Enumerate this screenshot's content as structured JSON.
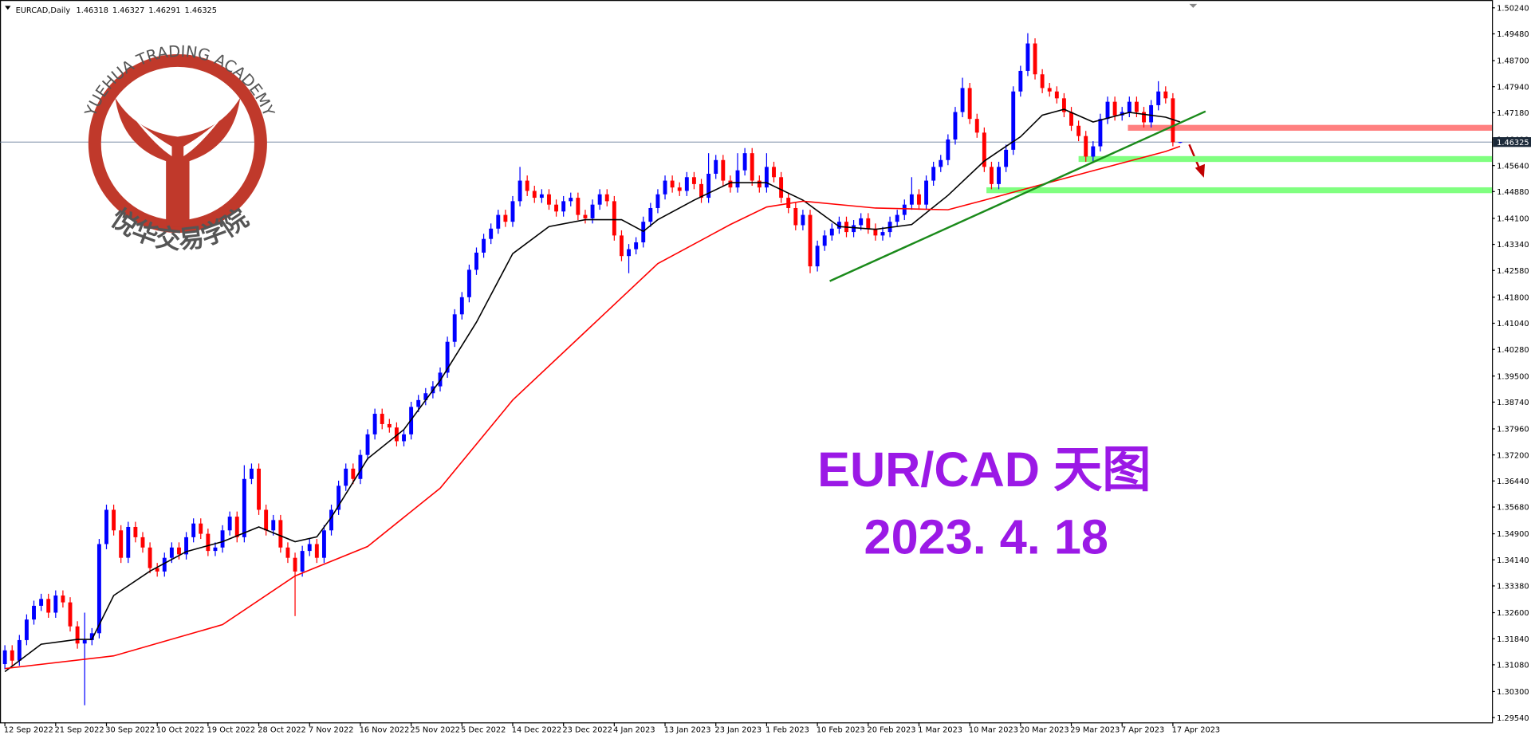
{
  "logo": {
    "text": "YUEHUA TRADING ACADEMY",
    "chinese": "悦华交易学院"
  },
  "chart_data": {
    "type": "candlestick",
    "symbol": "EURCAD,Daily",
    "annotations": [
      "EUR/CAD 天图",
      "2023. 4. 18"
    ],
    "up_color": "#0000ff",
    "down_color": "#ff0000",
    "ylim": [
      1.294,
      1.5041
    ],
    "yticks": [
      {
        "value": 1.5024,
        "label": "1.50240"
      },
      {
        "value": 1.4948,
        "label": "1.49480"
      },
      {
        "value": 1.487,
        "label": "1.48700"
      },
      {
        "value": 1.4794,
        "label": "1.47940"
      },
      {
        "value": 1.4718,
        "label": "1.47180"
      },
      {
        "value": 1.464,
        "label": "1.46400"
      },
      {
        "value": 1.4564,
        "label": "1.45640"
      },
      {
        "value": 1.4488,
        "label": "1.44880"
      },
      {
        "value": 1.441,
        "label": "1.44100"
      },
      {
        "value": 1.4334,
        "label": "1.43340"
      },
      {
        "value": 1.4258,
        "label": "1.42580"
      },
      {
        "value": 1.418,
        "label": "1.41800"
      },
      {
        "value": 1.4104,
        "label": "1.41040"
      },
      {
        "value": 1.4028,
        "label": "1.40280"
      },
      {
        "value": 1.395,
        "label": "1.39500"
      },
      {
        "value": 1.3874,
        "label": "1.38740"
      },
      {
        "value": 1.3796,
        "label": "1.37960"
      },
      {
        "value": 1.372,
        "label": "1.37200"
      },
      {
        "value": 1.3644,
        "label": "1.36440"
      },
      {
        "value": 1.3568,
        "label": "1.35680"
      },
      {
        "value": 1.349,
        "label": "1.34900"
      },
      {
        "value": 1.3414,
        "label": "1.34140"
      },
      {
        "value": 1.3338,
        "label": "1.33380"
      },
      {
        "value": 1.326,
        "label": "1.32600"
      },
      {
        "value": 1.3184,
        "label": "1.31840"
      },
      {
        "value": 1.3108,
        "label": "1.31080"
      },
      {
        "value": 1.303,
        "label": "1.30300"
      },
      {
        "value": 1.2954,
        "label": "1.29540"
      }
    ],
    "xticks": [
      {
        "value": 0,
        "label": "12 Sep 2022"
      },
      {
        "value": 7,
        "label": "21 Sep 2022"
      },
      {
        "value": 14,
        "label": "30 Sep 2022"
      },
      {
        "value": 21,
        "label": "10 Oct 2022"
      },
      {
        "value": 28,
        "label": "19 Oct 2022"
      },
      {
        "value": 35,
        "label": "28 Oct 2022"
      },
      {
        "value": 42,
        "label": "7 Nov 2022"
      },
      {
        "value": 49,
        "label": "16 Nov 2022"
      },
      {
        "value": 56,
        "label": "25 Nov 2022"
      },
      {
        "value": 63,
        "label": "5 Dec 2022"
      },
      {
        "value": 70,
        "label": "14 Dec 2022"
      },
      {
        "value": 77,
        "label": "23 Dec 2022"
      },
      {
        "value": 84,
        "label": "4 Jan 2023"
      },
      {
        "value": 91,
        "label": "13 Jan 2023"
      },
      {
        "value": 98,
        "label": "23 Jan 2023"
      },
      {
        "value": 105,
        "label": "1 Feb 2023"
      },
      {
        "value": 112,
        "label": "10 Feb 2023"
      },
      {
        "value": 119,
        "label": "20 Feb 2023"
      },
      {
        "value": 126,
        "label": "1 Mar 2023"
      },
      {
        "value": 133,
        "label": "10 Mar 2023"
      },
      {
        "value": 140,
        "label": "20 Mar 2023"
      },
      {
        "value": 147,
        "label": "29 Mar 2023"
      },
      {
        "value": 154,
        "label": "7 Apr 2023"
      },
      {
        "value": 161,
        "label": "17 Apr 2023"
      }
    ],
    "ohlc": [
      [
        1.311,
        1.3165,
        1.3095,
        1.315
      ],
      [
        1.315,
        1.3165,
        1.3105,
        1.312
      ],
      [
        1.312,
        1.3195,
        1.3105,
        1.318
      ],
      [
        1.318,
        1.3255,
        1.3165,
        1.324
      ],
      [
        1.324,
        1.3295,
        1.3225,
        1.328
      ],
      [
        1.328,
        1.3315,
        1.3265,
        1.33
      ],
      [
        1.33,
        1.3315,
        1.3245,
        1.326
      ],
      [
        1.326,
        1.3325,
        1.3245,
        1.331
      ],
      [
        1.331,
        1.3325,
        1.3275,
        1.329
      ],
      [
        1.329,
        1.3305,
        1.3205,
        1.322
      ],
      [
        1.322,
        1.3235,
        1.3155,
        1.317
      ],
      [
        1.317,
        1.326,
        1.299,
        1.318
      ],
      [
        1.318,
        1.3215,
        1.3165,
        1.32
      ],
      [
        1.32,
        1.3475,
        1.3185,
        1.346
      ],
      [
        1.346,
        1.3575,
        1.3445,
        1.356
      ],
      [
        1.356,
        1.3575,
        1.3485,
        1.35
      ],
      [
        1.35,
        1.3515,
        1.3405,
        1.342
      ],
      [
        1.342,
        1.3525,
        1.3405,
        1.351
      ],
      [
        1.351,
        1.3525,
        1.3465,
        1.348
      ],
      [
        1.348,
        1.3495,
        1.3435,
        1.345
      ],
      [
        1.345,
        1.3465,
        1.3375,
        1.339
      ],
      [
        1.339,
        1.3405,
        1.3365,
        1.338
      ],
      [
        1.338,
        1.3435,
        1.3365,
        1.342
      ],
      [
        1.342,
        1.3465,
        1.3405,
        1.345
      ],
      [
        1.345,
        1.3465,
        1.3415,
        1.343
      ],
      [
        1.343,
        1.3495,
        1.3415,
        1.348
      ],
      [
        1.348,
        1.3535,
        1.3465,
        1.352
      ],
      [
        1.352,
        1.3535,
        1.3475,
        1.349
      ],
      [
        1.349,
        1.3505,
        1.3425,
        1.344
      ],
      [
        1.344,
        1.3465,
        1.3425,
        1.345
      ],
      [
        1.345,
        1.3515,
        1.3435,
        1.35
      ],
      [
        1.35,
        1.3555,
        1.3485,
        1.354
      ],
      [
        1.354,
        1.3555,
        1.3465,
        1.348
      ],
      [
        1.348,
        1.369,
        1.3465,
        1.365
      ],
      [
        1.365,
        1.3695,
        1.3635,
        1.368
      ],
      [
        1.368,
        1.3695,
        1.3545,
        1.356
      ],
      [
        1.356,
        1.3575,
        1.3485,
        1.35
      ],
      [
        1.35,
        1.3545,
        1.3485,
        1.353
      ],
      [
        1.353,
        1.3545,
        1.3435,
        1.345
      ],
      [
        1.345,
        1.3465,
        1.3405,
        1.342
      ],
      [
        1.342,
        1.3435,
        1.325,
        1.338
      ],
      [
        1.338,
        1.3455,
        1.3365,
        1.344
      ],
      [
        1.344,
        1.3475,
        1.3425,
        1.346
      ],
      [
        1.346,
        1.3475,
        1.3405,
        1.342
      ],
      [
        1.342,
        1.3515,
        1.3405,
        1.35
      ],
      [
        1.35,
        1.3575,
        1.3485,
        1.356
      ],
      [
        1.356,
        1.3645,
        1.3545,
        1.363
      ],
      [
        1.363,
        1.3695,
        1.3615,
        1.368
      ],
      [
        1.368,
        1.3695,
        1.3635,
        1.365
      ],
      [
        1.365,
        1.3735,
        1.3635,
        1.372
      ],
      [
        1.372,
        1.3795,
        1.3705,
        1.378
      ],
      [
        1.378,
        1.3855,
        1.3765,
        1.384
      ],
      [
        1.384,
        1.3855,
        1.3795,
        1.381
      ],
      [
        1.381,
        1.3825,
        1.3785,
        1.38
      ],
      [
        1.38,
        1.3815,
        1.3745,
        1.376
      ],
      [
        1.376,
        1.3795,
        1.3745,
        1.378
      ],
      [
        1.378,
        1.3875,
        1.3765,
        1.386
      ],
      [
        1.386,
        1.3895,
        1.3845,
        1.388
      ],
      [
        1.388,
        1.3915,
        1.3865,
        1.39
      ],
      [
        1.39,
        1.3935,
        1.3885,
        1.392
      ],
      [
        1.392,
        1.3975,
        1.3905,
        1.396
      ],
      [
        1.396,
        1.4065,
        1.3945,
        1.405
      ],
      [
        1.405,
        1.4145,
        1.4035,
        1.413
      ],
      [
        1.413,
        1.4195,
        1.4115,
        1.418
      ],
      [
        1.418,
        1.4275,
        1.4165,
        1.426
      ],
      [
        1.426,
        1.4325,
        1.4245,
        1.431
      ],
      [
        1.431,
        1.4365,
        1.4295,
        1.435
      ],
      [
        1.435,
        1.4395,
        1.4335,
        1.438
      ],
      [
        1.438,
        1.4435,
        1.4365,
        1.442
      ],
      [
        1.442,
        1.4435,
        1.4385,
        1.44
      ],
      [
        1.44,
        1.4475,
        1.4385,
        1.446
      ],
      [
        1.446,
        1.456,
        1.4445,
        1.452
      ],
      [
        1.452,
        1.4535,
        1.4475,
        1.449
      ],
      [
        1.449,
        1.4505,
        1.4455,
        1.447
      ],
      [
        1.447,
        1.4495,
        1.4455,
        1.448
      ],
      [
        1.448,
        1.4495,
        1.4435,
        1.445
      ],
      [
        1.445,
        1.4465,
        1.4415,
        1.443
      ],
      [
        1.443,
        1.4475,
        1.4415,
        1.446
      ],
      [
        1.446,
        1.4485,
        1.4445,
        1.447
      ],
      [
        1.447,
        1.4485,
        1.4405,
        1.442
      ],
      [
        1.442,
        1.4435,
        1.4395,
        1.441
      ],
      [
        1.441,
        1.4465,
        1.4395,
        1.445
      ],
      [
        1.445,
        1.4495,
        1.4435,
        1.448
      ],
      [
        1.448,
        1.4495,
        1.4445,
        1.446
      ],
      [
        1.446,
        1.4475,
        1.4345,
        1.436
      ],
      [
        1.436,
        1.4375,
        1.4285,
        1.43
      ],
      [
        1.43,
        1.4335,
        1.425,
        1.432
      ],
      [
        1.432,
        1.4355,
        1.4305,
        1.434
      ],
      [
        1.434,
        1.4415,
        1.4325,
        1.44
      ],
      [
        1.44,
        1.4455,
        1.4385,
        1.444
      ],
      [
        1.444,
        1.4495,
        1.4425,
        1.448
      ],
      [
        1.448,
        1.4535,
        1.4465,
        1.452
      ],
      [
        1.452,
        1.4535,
        1.4485,
        1.45
      ],
      [
        1.45,
        1.4515,
        1.4475,
        1.449
      ],
      [
        1.449,
        1.4545,
        1.4475,
        1.453
      ],
      [
        1.453,
        1.4545,
        1.4495,
        1.451
      ],
      [
        1.451,
        1.4525,
        1.4455,
        1.447
      ],
      [
        1.447,
        1.46,
        1.4455,
        1.454
      ],
      [
        1.454,
        1.4595,
        1.4525,
        1.458
      ],
      [
        1.458,
        1.4595,
        1.4505,
        1.452
      ],
      [
        1.452,
        1.4535,
        1.4485,
        1.45
      ],
      [
        1.45,
        1.46,
        1.4485,
        1.455
      ],
      [
        1.455,
        1.4615,
        1.4535,
        1.46
      ],
      [
        1.46,
        1.4615,
        1.4505,
        1.452
      ],
      [
        1.452,
        1.4535,
        1.4485,
        1.45
      ],
      [
        1.45,
        1.46,
        1.4485,
        1.456
      ],
      [
        1.456,
        1.4575,
        1.4515,
        1.453
      ],
      [
        1.453,
        1.4545,
        1.4455,
        1.447
      ],
      [
        1.447,
        1.4485,
        1.4425,
        1.444
      ],
      [
        1.444,
        1.4455,
        1.4375,
        1.439
      ],
      [
        1.439,
        1.4435,
        1.4375,
        1.442
      ],
      [
        1.442,
        1.4435,
        1.425,
        1.427
      ],
      [
        1.427,
        1.4345,
        1.4255,
        1.433
      ],
      [
        1.433,
        1.4375,
        1.4315,
        1.436
      ],
      [
        1.436,
        1.4395,
        1.4345,
        1.438
      ],
      [
        1.438,
        1.4415,
        1.4365,
        1.44
      ],
      [
        1.44,
        1.4415,
        1.4355,
        1.437
      ],
      [
        1.437,
        1.4405,
        1.4355,
        1.439
      ],
      [
        1.439,
        1.4425,
        1.4375,
        1.441
      ],
      [
        1.441,
        1.4425,
        1.4365,
        1.438
      ],
      [
        1.438,
        1.4395,
        1.4345,
        1.436
      ],
      [
        1.436,
        1.4385,
        1.4345,
        1.437
      ],
      [
        1.437,
        1.4415,
        1.4355,
        1.44
      ],
      [
        1.44,
        1.4435,
        1.4385,
        1.442
      ],
      [
        1.442,
        1.4465,
        1.4405,
        1.445
      ],
      [
        1.445,
        1.453,
        1.4435,
        1.448
      ],
      [
        1.448,
        1.4495,
        1.4435,
        1.445
      ],
      [
        1.445,
        1.4535,
        1.4435,
        1.452
      ],
      [
        1.452,
        1.4575,
        1.4505,
        1.456
      ],
      [
        1.456,
        1.4595,
        1.4545,
        1.458
      ],
      [
        1.458,
        1.4655,
        1.4565,
        1.464
      ],
      [
        1.464,
        1.4735,
        1.4625,
        1.472
      ],
      [
        1.472,
        1.482,
        1.4705,
        1.479
      ],
      [
        1.479,
        1.4805,
        1.4685,
        1.47
      ],
      [
        1.47,
        1.4715,
        1.4645,
        1.466
      ],
      [
        1.466,
        1.4675,
        1.4545,
        1.456
      ],
      [
        1.456,
        1.4575,
        1.4495,
        1.451
      ],
      [
        1.451,
        1.4575,
        1.4495,
        1.456
      ],
      [
        1.456,
        1.4625,
        1.4545,
        1.461
      ],
      [
        1.461,
        1.4795,
        1.4595,
        1.478
      ],
      [
        1.478,
        1.4855,
        1.4765,
        1.484
      ],
      [
        1.484,
        1.495,
        1.4825,
        1.492
      ],
      [
        1.492,
        1.4935,
        1.4815,
        1.483
      ],
      [
        1.483,
        1.4845,
        1.4775,
        1.479
      ],
      [
        1.479,
        1.4805,
        1.4765,
        1.478
      ],
      [
        1.478,
        1.4795,
        1.4745,
        1.476
      ],
      [
        1.476,
        1.4775,
        1.4705,
        1.472
      ],
      [
        1.472,
        1.4735,
        1.4665,
        1.468
      ],
      [
        1.468,
        1.4695,
        1.4635,
        1.465
      ],
      [
        1.465,
        1.4665,
        1.4575,
        1.459
      ],
      [
        1.459,
        1.4635,
        1.4575,
        1.462
      ],
      [
        1.462,
        1.4715,
        1.4605,
        1.47
      ],
      [
        1.47,
        1.4765,
        1.4685,
        1.475
      ],
      [
        1.475,
        1.4765,
        1.4695,
        1.471
      ],
      [
        1.471,
        1.4735,
        1.4695,
        1.472
      ],
      [
        1.472,
        1.4765,
        1.4705,
        1.475
      ],
      [
        1.475,
        1.4765,
        1.4705,
        1.472
      ],
      [
        1.472,
        1.4735,
        1.4675,
        1.469
      ],
      [
        1.469,
        1.4755,
        1.4675,
        1.474
      ],
      [
        1.474,
        1.481,
        1.4725,
        1.478
      ],
      [
        1.478,
        1.4795,
        1.4745,
        1.476
      ],
      [
        1.476,
        1.4775,
        1.462,
        1.4632
      ],
      [
        1.46318,
        1.46327,
        1.46291,
        1.46325
      ]
    ],
    "lines": [
      {
        "color": "#000000",
        "x": [
          0,
          5,
          10,
          12,
          15,
          20,
          25,
          30,
          35,
          40,
          43,
          45,
          50,
          55,
          60,
          65,
          70,
          75,
          80,
          85,
          88,
          90,
          95,
          100,
          105,
          110,
          115,
          120,
          125,
          130,
          135,
          138,
          140,
          143,
          146,
          150,
          155,
          160,
          162
        ],
        "values": [
          1.3088,
          1.3168,
          1.3182,
          1.3182,
          1.331,
          1.3381,
          1.3438,
          1.3467,
          1.351,
          1.3467,
          1.3481,
          1.3538,
          1.3709,
          1.3794,
          1.3937,
          1.4107,
          1.4307,
          1.4386,
          1.4406,
          1.4406,
          1.4372,
          1.4406,
          1.4463,
          1.4514,
          1.4514,
          1.4463,
          1.4386,
          1.4378,
          1.4392,
          1.4477,
          1.4577,
          1.462,
          1.4648,
          1.4711,
          1.4728,
          1.4691,
          1.4719,
          1.4705,
          1.4691
        ]
      },
      {
        "color": "#ff0000",
        "x": [
          0,
          15,
          30,
          40,
          50,
          60,
          70,
          80,
          90,
          100,
          105,
          110,
          120,
          130,
          135,
          140,
          150,
          160,
          162
        ],
        "values": [
          1.3097,
          1.3134,
          1.3225,
          1.3367,
          1.3453,
          1.3623,
          1.388,
          1.4079,
          1.4278,
          1.4392,
          1.4443,
          1.446,
          1.444,
          1.4435,
          1.4463,
          1.4492,
          1.4549,
          1.4605,
          1.462
        ]
      }
    ],
    "trendline": {
      "color": "#1a8a1a",
      "x": [
        113.7,
        165.5
      ],
      "values": [
        1.4227,
        1.4722
      ]
    },
    "levels": [
      {
        "color": "#ff8080",
        "value": 1.4674,
        "start": 154.8
      },
      {
        "color": "#80ff80",
        "value": 1.4583,
        "start": 148
      },
      {
        "color": "#80ff80",
        "value": 1.4492,
        "start": 135.3
      }
    ]
  }
}
